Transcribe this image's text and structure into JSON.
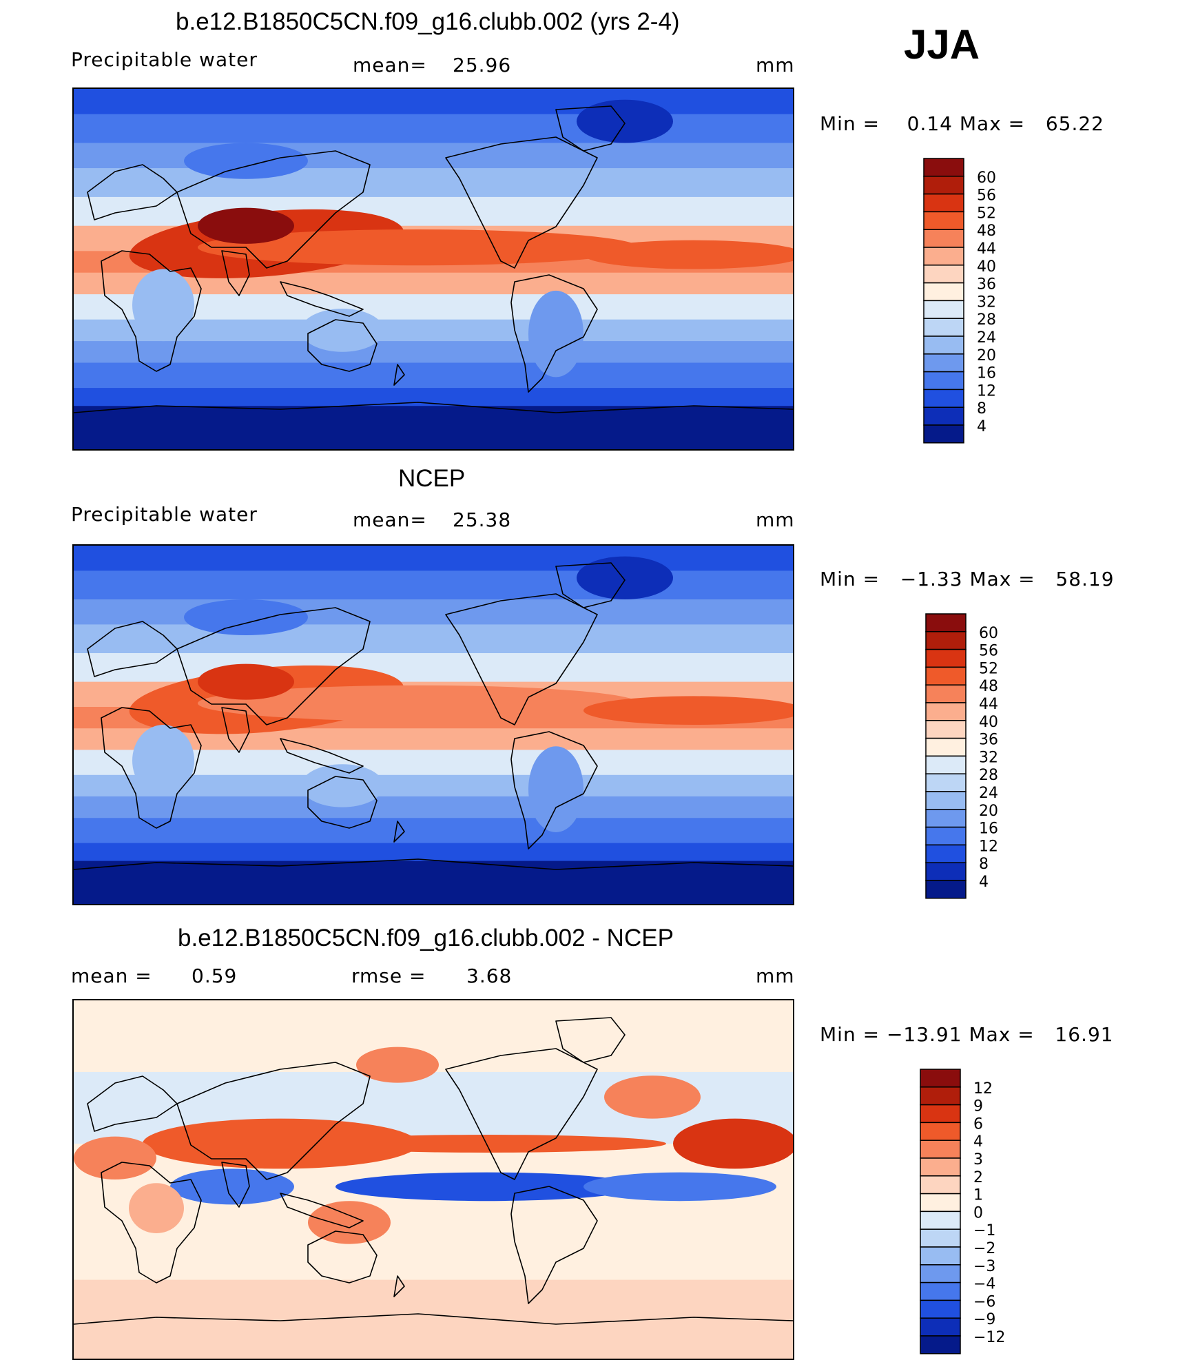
{
  "season": "JJA",
  "units_label": "mm",
  "panels": [
    {
      "id": "model",
      "title": "b.e12.B1850C5CN.f09_g16.clubb.002 (yrs 2-4)",
      "variable": "Precipitable water",
      "stat1_label": "mean=",
      "stat1_value": "25.96",
      "units": "mm",
      "minmax_text": "Min =    0.14 Max =   65.22",
      "min": 0.14,
      "max": 65.22,
      "colorbar_labels": [
        "60",
        "56",
        "52",
        "48",
        "44",
        "40",
        "36",
        "32",
        "28",
        "24",
        "20",
        "16",
        "12",
        "8",
        "4"
      ],
      "colorbar_colors": [
        "#8a0d0d",
        "#b01e0b",
        "#d93412",
        "#ef5a2a",
        "#f6825a",
        "#fbae8e",
        "#fdd5c0",
        "#fff0e0",
        "#dceaf8",
        "#bdd6f5",
        "#98bcf2",
        "#6e99ee",
        "#4677ec",
        "#2050e0",
        "#0d2eb8",
        "#051a8a"
      ]
    },
    {
      "id": "obs",
      "title": "NCEP",
      "variable": "Precipitable water",
      "stat1_label": "mean=",
      "stat1_value": "25.38",
      "units": "mm",
      "minmax_text": "Min =   −1.33 Max =   58.19",
      "min": -1.33,
      "max": 58.19,
      "colorbar_labels": [
        "60",
        "56",
        "52",
        "48",
        "44",
        "40",
        "36",
        "32",
        "28",
        "24",
        "20",
        "16",
        "12",
        "8",
        "4"
      ],
      "colorbar_colors": [
        "#8a0d0d",
        "#b01e0b",
        "#d93412",
        "#ef5a2a",
        "#f6825a",
        "#fbae8e",
        "#fdd5c0",
        "#fff0e0",
        "#dceaf8",
        "#bdd6f5",
        "#98bcf2",
        "#6e99ee",
        "#4677ec",
        "#2050e0",
        "#0d2eb8",
        "#051a8a"
      ]
    },
    {
      "id": "diff",
      "title": "b.e12.B1850C5CN.f09_g16.clubb.002 - NCEP",
      "variable": "",
      "stat1_label": "mean =",
      "stat1_value": "0.59",
      "stat2_label": "rmse =",
      "stat2_value": "3.68",
      "units": "mm",
      "minmax_text": "Min = −13.91 Max =   16.91",
      "min": -13.91,
      "max": 16.91,
      "colorbar_labels": [
        "12",
        "9",
        "6",
        "4",
        "3",
        "2",
        "1",
        "0",
        "−1",
        "−2",
        "−3",
        "−4",
        "−6",
        "−9",
        "−12"
      ],
      "colorbar_colors": [
        "#8a0d0d",
        "#b01e0b",
        "#d93412",
        "#ef5a2a",
        "#f6825a",
        "#fbae8e",
        "#fdd5c0",
        "#fff0e0",
        "#dceaf8",
        "#bdd6f5",
        "#98bcf2",
        "#6e99ee",
        "#4677ec",
        "#2050e0",
        "#0d2eb8",
        "#051a8a"
      ]
    }
  ]
}
